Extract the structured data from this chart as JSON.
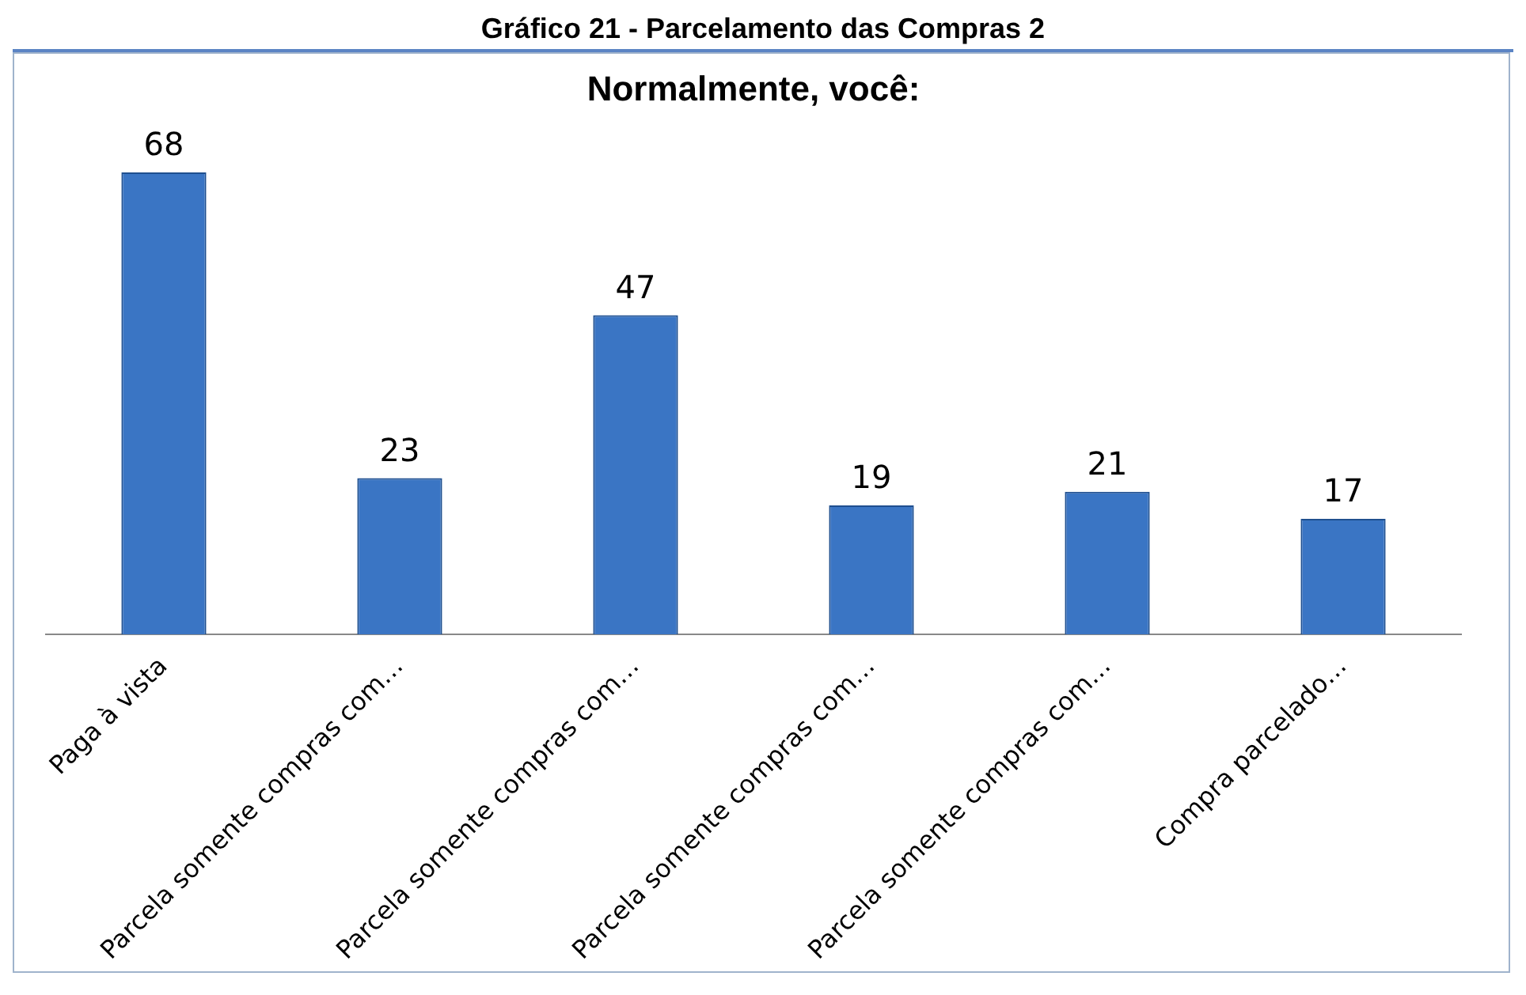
{
  "chart_data": {
    "type": "bar",
    "title": "Gráfico 21 - Parcelamento das Compras 2",
    "subtitle": "Normalmente, você:",
    "categories": [
      "Paga à vista",
      "Parcela somente compras com…",
      "Parcela somente compras com…",
      "Parcela somente compras com…",
      "Parcela somente compras com…",
      "Compra parcelado…"
    ],
    "values": [
      68,
      23,
      47,
      19,
      21,
      17
    ],
    "color": "#3a75c4",
    "data_labels": true,
    "grid": false,
    "legend": false
  }
}
